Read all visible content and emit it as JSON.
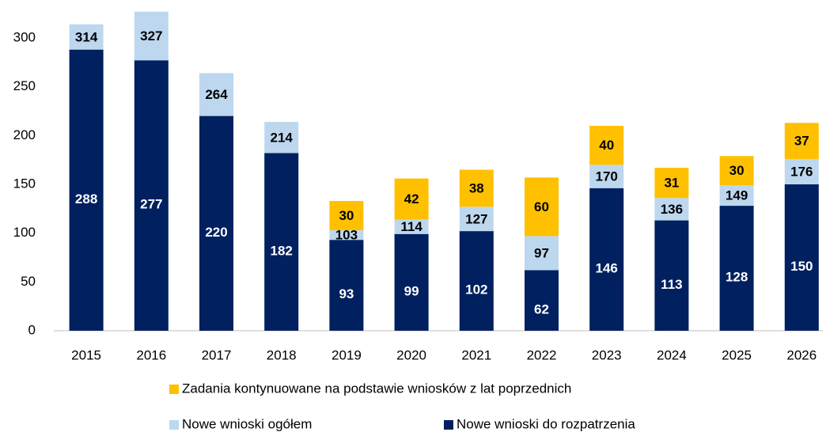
{
  "chart_data": {
    "type": "bar",
    "categories": [
      "2015",
      "2016",
      "2017",
      "2018",
      "2019",
      "2020",
      "2021",
      "2022",
      "2023",
      "2024",
      "2025",
      "2026"
    ],
    "series": [
      {
        "name": "Nowe wnioski ogółem",
        "color": "#bdd7ee",
        "values": [
          314,
          327,
          264,
          214,
          103,
          114,
          127,
          97,
          170,
          136,
          149,
          176
        ]
      },
      {
        "name": "Nowe wnioski do rozpatrzenia",
        "color": "#002060",
        "values": [
          288,
          277,
          220,
          182,
          93,
          99,
          102,
          62,
          146,
          113,
          128,
          150
        ]
      },
      {
        "name": "Zadania kontynuowane na podstawie wniosków z lat poprzednich",
        "color": "#ffc000",
        "values": [
          null,
          null,
          null,
          null,
          30,
          42,
          38,
          60,
          40,
          31,
          30,
          37
        ]
      }
    ],
    "ylim": [
      0,
      350
    ],
    "yticks": [
      0,
      50,
      100,
      150,
      200,
      250,
      300
    ],
    "grid": false
  }
}
